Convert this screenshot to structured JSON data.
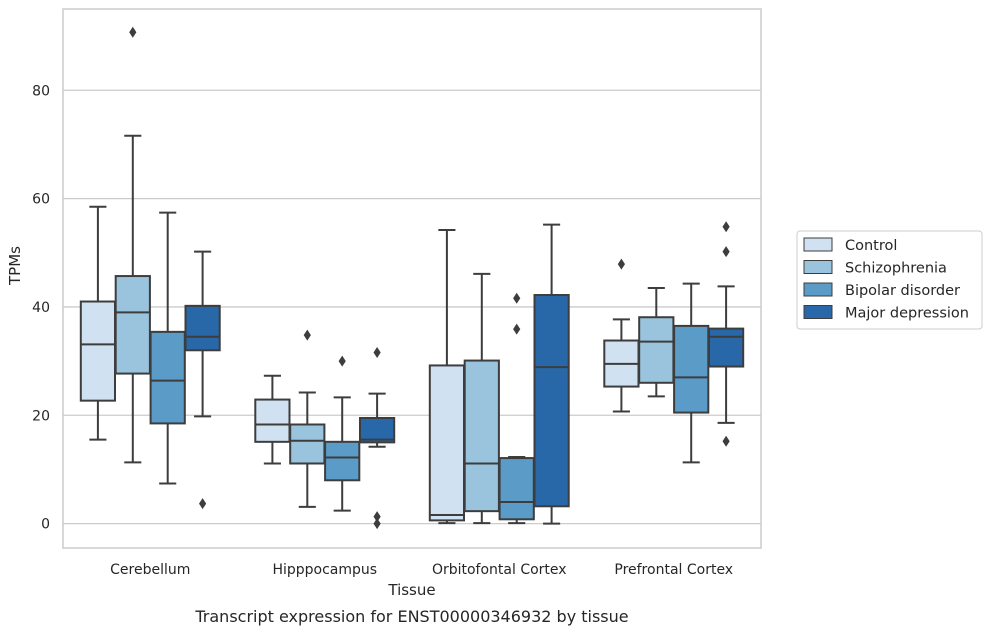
{
  "chart_data": {
    "type": "box",
    "title": "",
    "caption": "Transcript expression for ENST00000346932 by tissue",
    "xlabel": "Tissue",
    "ylabel": "TPMs",
    "ylim": [
      -4.5,
      95
    ],
    "yticks": [
      0,
      20,
      40,
      60,
      80
    ],
    "grid": "horizontal",
    "legend_position": "right",
    "categories": [
      "Cerebellum",
      "Hipppocampus",
      "Orbitofontal Cortex",
      "Prefrontal Cortex"
    ],
    "series": [
      {
        "name": "Control",
        "color": "#d0e1f2",
        "boxes": [
          {
            "whislo": 15.5,
            "q1": 22.7,
            "med": 33.1,
            "q3": 41.0,
            "whishi": 58.5,
            "fliers": []
          },
          {
            "whislo": 11.1,
            "q1": 15.1,
            "med": 18.3,
            "q3": 22.9,
            "whishi": 27.3,
            "fliers": []
          },
          {
            "whislo": 0.1,
            "q1": 0.6,
            "med": 1.6,
            "q3": 29.2,
            "whishi": 54.2,
            "fliers": []
          },
          {
            "whislo": 20.7,
            "q1": 25.3,
            "med": 29.5,
            "q3": 33.8,
            "whishi": 37.7,
            "fliers": [
              47.9
            ]
          }
        ]
      },
      {
        "name": "Schizophrenia",
        "color": "#9ac4de",
        "boxes": [
          {
            "whislo": 11.3,
            "q1": 27.7,
            "med": 39.0,
            "q3": 45.7,
            "whishi": 71.6,
            "fliers": [
              90.7
            ]
          },
          {
            "whislo": 3.1,
            "q1": 11.1,
            "med": 15.3,
            "q3": 18.3,
            "whishi": 24.2,
            "fliers": [
              34.8
            ]
          },
          {
            "whislo": 0.1,
            "q1": 2.3,
            "med": 11.1,
            "q3": 30.1,
            "whishi": 46.1,
            "fliers": []
          },
          {
            "whislo": 23.5,
            "q1": 26.0,
            "med": 33.6,
            "q3": 38.1,
            "whishi": 43.5,
            "fliers": []
          }
        ]
      },
      {
        "name": "Bipolar disorder",
        "color": "#5a9bc8",
        "boxes": [
          {
            "whislo": 7.4,
            "q1": 18.5,
            "med": 26.4,
            "q3": 35.4,
            "whishi": 57.4,
            "fliers": []
          },
          {
            "whislo": 2.4,
            "q1": 8.0,
            "med": 12.2,
            "q3": 15.1,
            "whishi": 23.3,
            "fliers": [
              30.0
            ]
          },
          {
            "whislo": 0.1,
            "q1": 0.8,
            "med": 4.0,
            "q3": 12.1,
            "whishi": 12.3,
            "fliers": [
              35.9,
              41.6
            ]
          },
          {
            "whislo": 11.3,
            "q1": 20.5,
            "med": 27.0,
            "q3": 36.5,
            "whishi": 44.3,
            "fliers": []
          }
        ]
      },
      {
        "name": "Major depression",
        "color": "#2867a8",
        "boxes": [
          {
            "whislo": 19.8,
            "q1": 32.0,
            "med": 34.5,
            "q3": 40.2,
            "whishi": 50.2,
            "fliers": [
              3.7
            ]
          },
          {
            "whislo": 14.2,
            "q1": 15.0,
            "med": 15.5,
            "q3": 19.5,
            "whishi": 24.0,
            "fliers": [
              31.6,
              1.3,
              0.0
            ]
          },
          {
            "whislo": 0.0,
            "q1": 3.2,
            "med": 28.9,
            "q3": 42.2,
            "whishi": 55.2,
            "fliers": []
          },
          {
            "whislo": 18.6,
            "q1": 29.0,
            "med": 34.5,
            "q3": 36.0,
            "whishi": 43.8,
            "fliers": [
              50.2,
              54.8,
              15.2
            ]
          }
        ]
      }
    ]
  }
}
